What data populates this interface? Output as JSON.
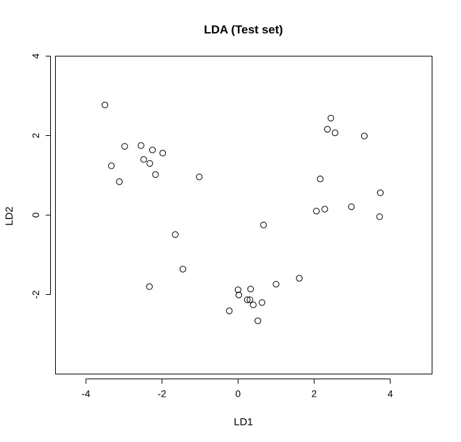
{
  "chart_data": {
    "type": "scatter",
    "title": "LDA (Test set)",
    "xlabel": "LD1",
    "ylabel": "LD2",
    "xlim": [
      -4.8,
      5.1
    ],
    "ylim": [
      -4.0,
      4.0
    ],
    "xticks": [
      -4,
      -2,
      0,
      2,
      4
    ],
    "yticks": [
      -2,
      0,
      2,
      4
    ],
    "grid": false,
    "marker": "open-circle",
    "points": [
      {
        "x": -3.5,
        "y": 2.77
      },
      {
        "x": -3.33,
        "y": 1.24
      },
      {
        "x": -3.12,
        "y": 0.84
      },
      {
        "x": -2.98,
        "y": 1.73
      },
      {
        "x": -2.55,
        "y": 1.75
      },
      {
        "x": -2.48,
        "y": 1.4
      },
      {
        "x": -2.32,
        "y": 1.3
      },
      {
        "x": -2.25,
        "y": 1.64
      },
      {
        "x": -2.17,
        "y": 1.02
      },
      {
        "x": -1.98,
        "y": 1.56
      },
      {
        "x": -1.02,
        "y": 0.96
      },
      {
        "x": -1.65,
        "y": -0.49
      },
      {
        "x": -1.45,
        "y": -1.36
      },
      {
        "x": -2.33,
        "y": -1.8
      },
      {
        "x": -0.23,
        "y": -2.41
      },
      {
        "x": 0.0,
        "y": -1.88
      },
      {
        "x": 0.02,
        "y": -2.01
      },
      {
        "x": 0.24,
        "y": -2.13
      },
      {
        "x": 0.31,
        "y": -2.13
      },
      {
        "x": 0.33,
        "y": -1.86
      },
      {
        "x": 0.4,
        "y": -2.26
      },
      {
        "x": 0.52,
        "y": -2.66
      },
      {
        "x": 0.63,
        "y": -2.2
      },
      {
        "x": 0.67,
        "y": -0.25
      },
      {
        "x": 1.0,
        "y": -1.74
      },
      {
        "x": 1.61,
        "y": -1.59
      },
      {
        "x": 2.06,
        "y": 0.1
      },
      {
        "x": 2.16,
        "y": 0.91
      },
      {
        "x": 2.28,
        "y": 0.15
      },
      {
        "x": 2.35,
        "y": 2.16
      },
      {
        "x": 2.44,
        "y": 2.44
      },
      {
        "x": 2.55,
        "y": 2.07
      },
      {
        "x": 2.98,
        "y": 0.21
      },
      {
        "x": 3.32,
        "y": 1.99
      },
      {
        "x": 3.72,
        "y": -0.04
      },
      {
        "x": 3.74,
        "y": 0.56
      }
    ]
  }
}
